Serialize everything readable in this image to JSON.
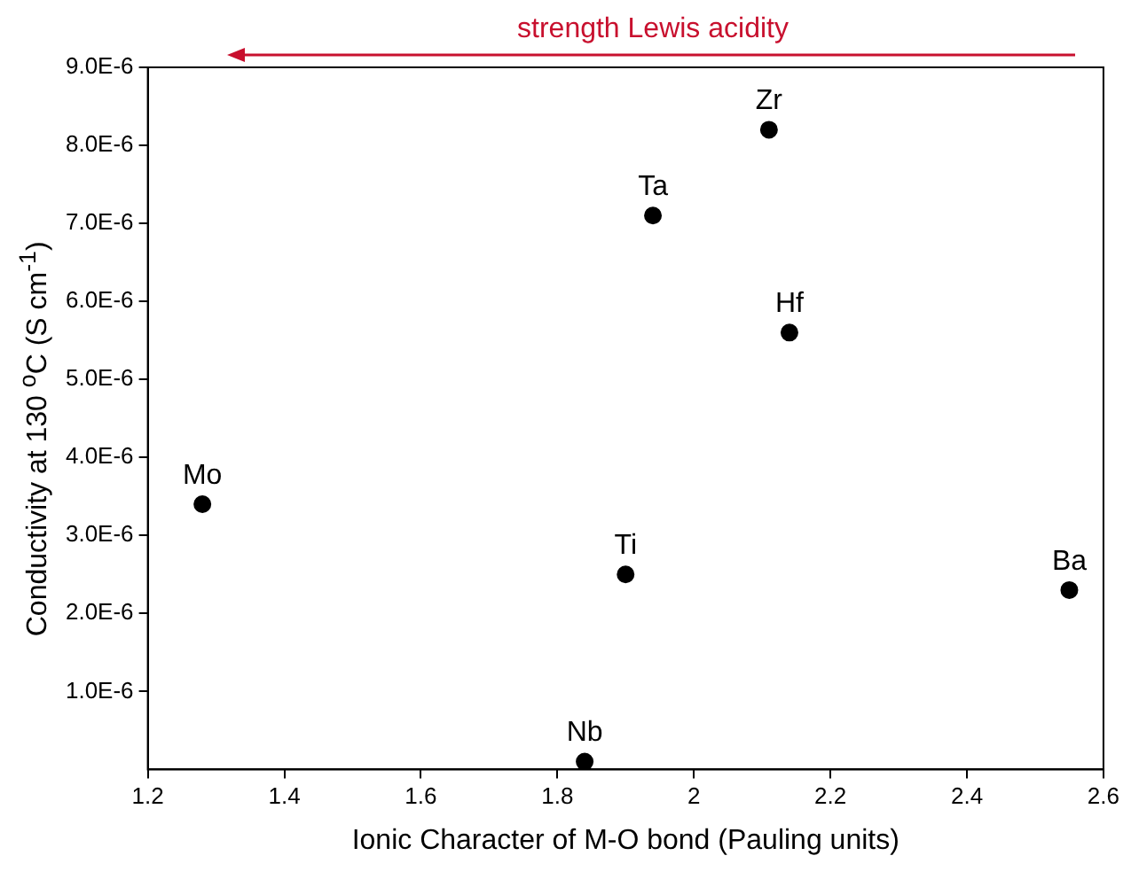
{
  "chart_data": {
    "type": "scatter",
    "xlabel": "Ionic Character of M-O bond (Pauling units)",
    "ylabel": "Conductivity at 130 $^{o}$C (S cm$^{-1}$)",
    "x": [
      1.28,
      1.84,
      1.9,
      1.94,
      2.11,
      2.14,
      2.55
    ],
    "series": [
      {
        "color": "#000000",
        "values": [
          3.4e-06,
          1e-07,
          2.5e-06,
          7.1e-06,
          8.2e-06,
          5.6e-06,
          2.3e-06
        ]
      }
    ],
    "xlim": [
      1.2,
      2.6
    ],
    "xticks": [
      1.2,
      1.4,
      1.6,
      1.8,
      2.0,
      2.2,
      2.4,
      2.6
    ],
    "ylim": [
      0,
      9e-06
    ],
    "yticks": [
      {
        "value": 1e-06,
        "label": "1.0E-6"
      },
      {
        "value": 2e-06,
        "label": "2.0E-6"
      },
      {
        "value": 3e-06,
        "label": "3.0E-6"
      },
      {
        "value": 4e-06,
        "label": "4.0E-6"
      },
      {
        "value": 5e-06,
        "label": "5.0E-6"
      },
      {
        "value": 6e-06,
        "label": "6.0E-6"
      },
      {
        "value": 7e-06,
        "label": "7.0E-6"
      },
      {
        "value": 8e-06,
        "label": "8.0E-6"
      },
      {
        "value": 9e-06,
        "label": "9.0E-6"
      }
    ],
    "marker": "circle",
    "grid": false,
    "legend": false,
    "annotations": [
      "strength Lewis acidity",
      {
        "text": "Mo",
        "x": 1.28,
        "y": 3.4e-06
      },
      {
        "text": "Nb",
        "x": 1.84,
        "y": 1e-07
      },
      {
        "text": "Ti",
        "x": 1.9,
        "y": 2.5e-06
      },
      {
        "text": "Ta",
        "x": 1.94,
        "y": 7.1e-06
      },
      {
        "text": "Zr",
        "x": 2.11,
        "y": 8.2e-06
      },
      {
        "text": "Hf",
        "x": 2.14,
        "y": 5.6e-06
      },
      {
        "text": "Ba",
        "x": 2.55,
        "y": 2.3e-06
      }
    ]
  }
}
